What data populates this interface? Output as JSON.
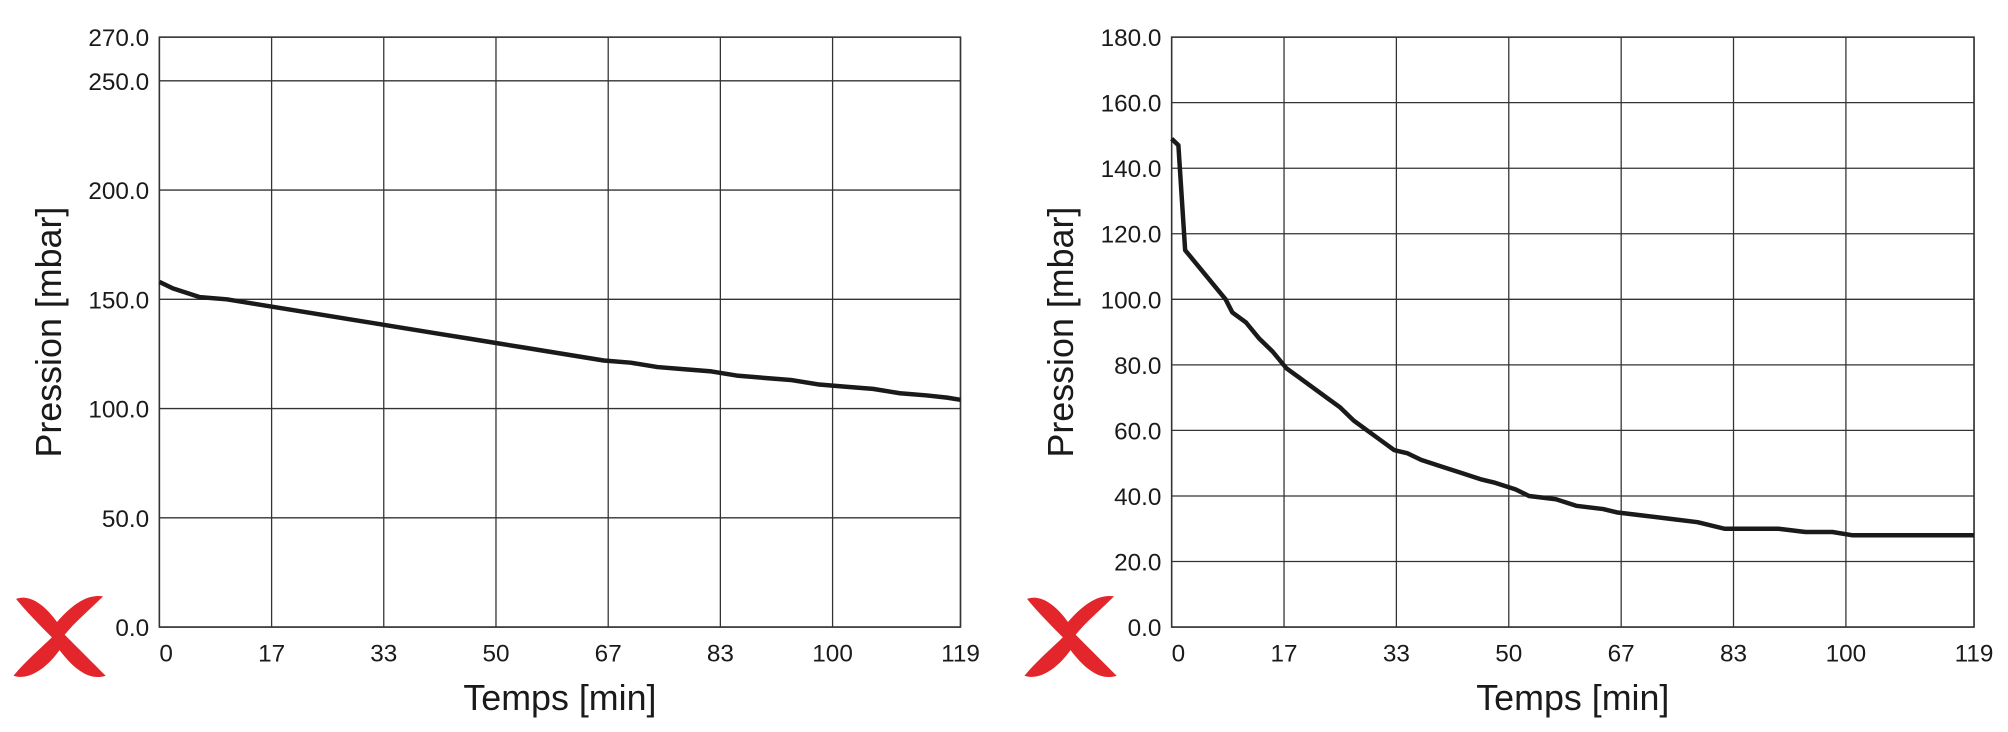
{
  "chart_data": [
    {
      "type": "line",
      "x_label": "Temps [min]",
      "y_label": "Pression [mbar]",
      "xlim": [
        0,
        119
      ],
      "ylim": [
        0,
        270
      ],
      "xticks": [
        0,
        {
          "value": 16.67,
          "label": "17"
        },
        {
          "value": 33.33,
          "label": "33"
        },
        50,
        {
          "value": 66.67,
          "label": "67"
        },
        {
          "value": 83.33,
          "label": "83"
        },
        100,
        119
      ],
      "yticks": [
        {
          "value": 0,
          "label": "0.0"
        },
        {
          "value": 50,
          "label": "50.0"
        },
        {
          "value": 100,
          "label": "100.0"
        },
        {
          "value": 150,
          "label": "150.0"
        },
        {
          "value": 200,
          "label": "200.0"
        },
        {
          "value": 250,
          "label": "250.0"
        },
        {
          "value": 270,
          "label": "270.0"
        }
      ],
      "grid": true,
      "series": [
        {
          "color": "#1a1a1a",
          "x": [
            0,
            2,
            4,
            6,
            10,
            14,
            18,
            22,
            26,
            30,
            34,
            38,
            42,
            46,
            50,
            54,
            58,
            62,
            66,
            70,
            74,
            78,
            82,
            86,
            90,
            94,
            98,
            102,
            106,
            110,
            114,
            117,
            119
          ],
          "values": [
            158,
            155,
            153,
            151,
            150,
            148,
            146,
            144,
            142,
            140,
            138,
            136,
            134,
            132,
            130,
            128,
            126,
            124,
            122,
            121,
            119,
            118,
            117,
            115,
            114,
            113,
            111,
            110,
            109,
            107,
            106,
            105,
            104
          ]
        }
      ]
    },
    {
      "type": "line",
      "x_label": "Temps [min]",
      "y_label": "Pression [mbar]",
      "xlim": [
        0,
        119
      ],
      "ylim": [
        0,
        180
      ],
      "xticks": [
        0,
        {
          "value": 16.67,
          "label": "17"
        },
        {
          "value": 33.33,
          "label": "33"
        },
        50,
        {
          "value": 66.67,
          "label": "67"
        },
        {
          "value": 83.33,
          "label": "83"
        },
        100,
        119
      ],
      "yticks": [
        {
          "value": 0,
          "label": "0.0"
        },
        {
          "value": 20,
          "label": "20.0"
        },
        {
          "value": 40,
          "label": "40.0"
        },
        {
          "value": 60,
          "label": "60.0"
        },
        {
          "value": 80,
          "label": "80.0"
        },
        {
          "value": 100,
          "label": "100.0"
        },
        {
          "value": 120,
          "label": "120.0"
        },
        {
          "value": 140,
          "label": "140.0"
        },
        {
          "value": 160,
          "label": "160.0"
        },
        {
          "value": 180,
          "label": "180.0"
        }
      ],
      "grid": true,
      "series": [
        {
          "color": "#1a1a1a",
          "x": [
            0,
            1,
            2,
            4,
            6,
            8,
            9,
            11,
            13,
            15,
            17,
            19,
            21,
            23,
            25,
            27,
            29,
            31,
            33,
            35,
            37,
            40,
            43,
            46,
            48,
            51,
            53,
            57,
            60,
            64,
            66,
            70,
            74,
            78,
            82,
            86,
            90,
            94,
            98,
            101,
            105,
            119
          ],
          "values": [
            149,
            147,
            115,
            110,
            105,
            100,
            96,
            93,
            88,
            84,
            79,
            76,
            73,
            70,
            67,
            63,
            60,
            57,
            54,
            53,
            51,
            49,
            47,
            45,
            44,
            42,
            40,
            39,
            37,
            36,
            35,
            34,
            33,
            32,
            30,
            30,
            30,
            29,
            29,
            28,
            28,
            28
          ]
        }
      ]
    }
  ]
}
